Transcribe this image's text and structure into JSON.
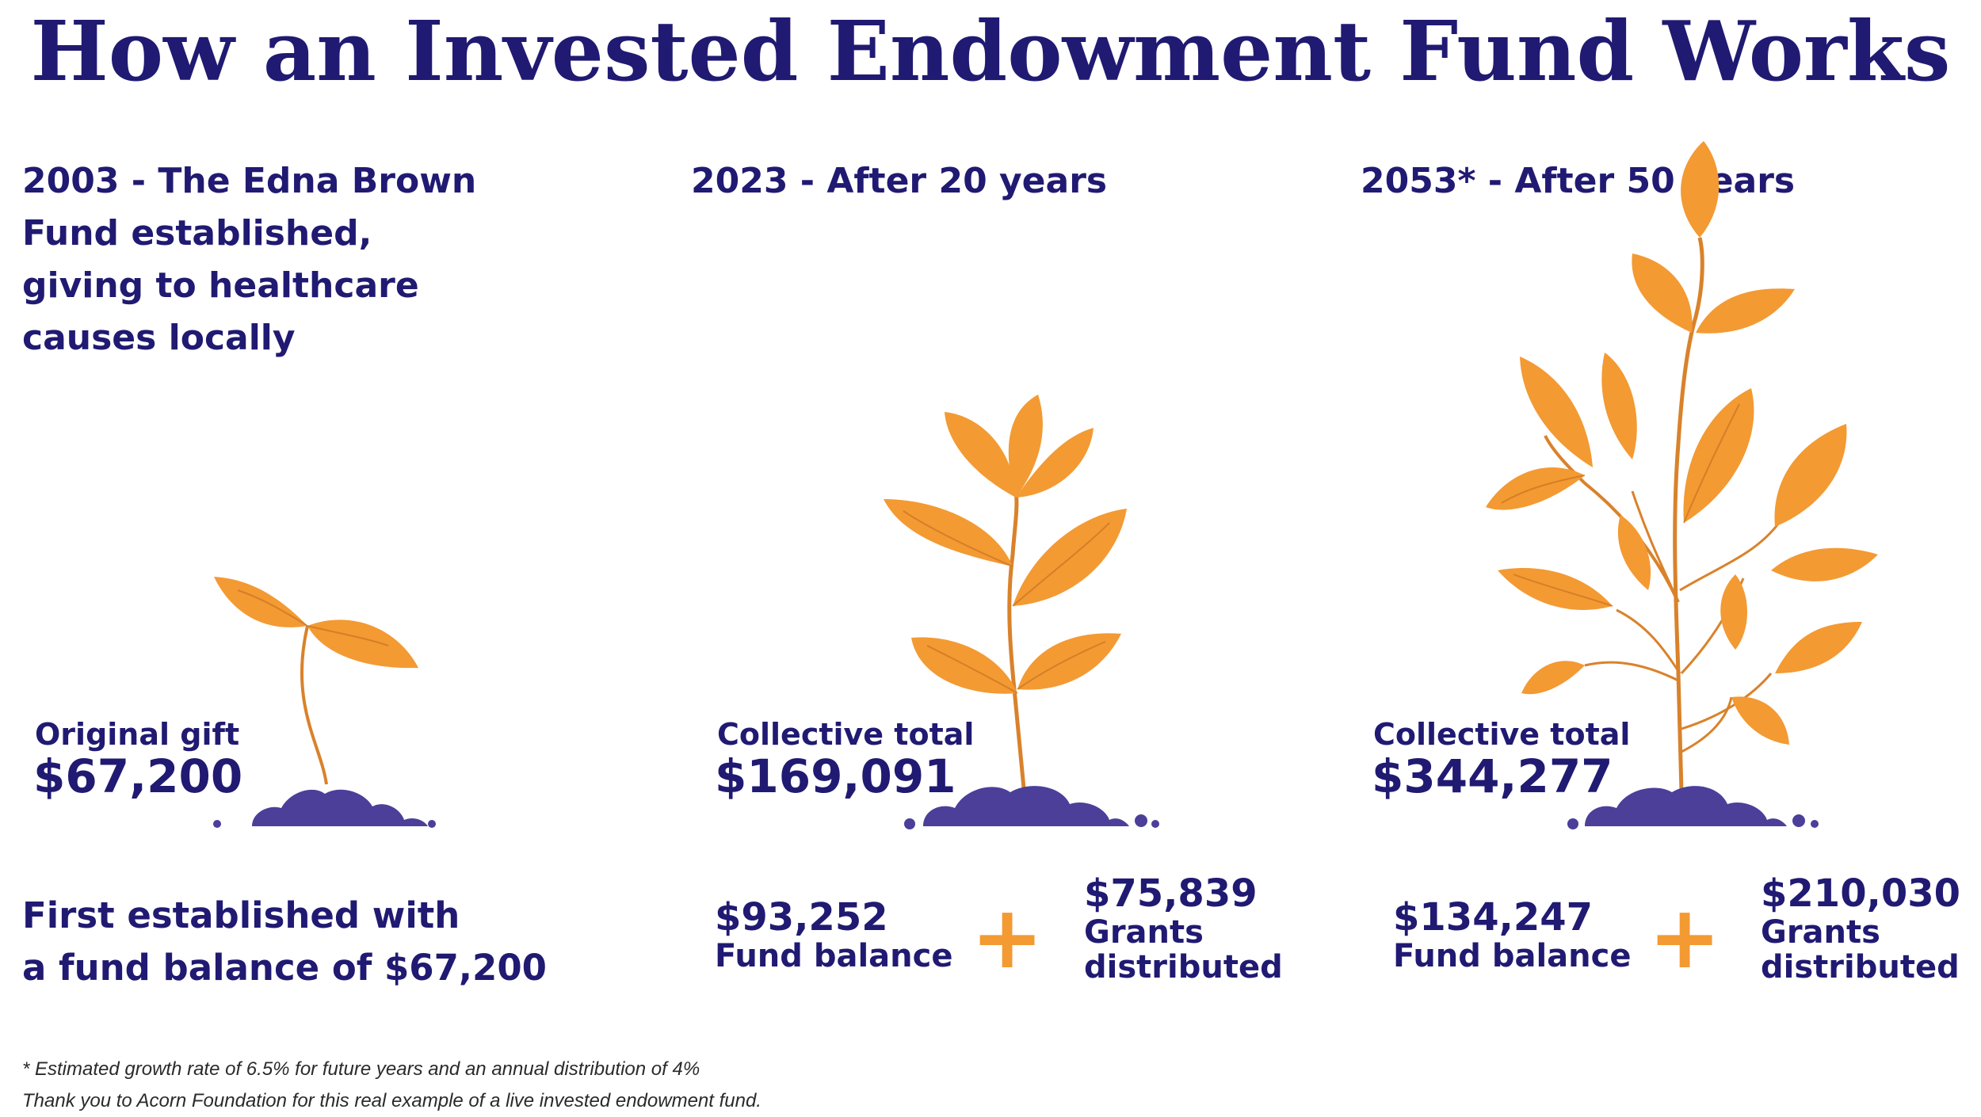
{
  "title": "How an Invested Endowment Fund Works",
  "columns": [
    {
      "heading_lines": [
        "2003 - The Edna Brown",
        "Fund established,",
        "giving to healthcare",
        "causes locally"
      ],
      "total_label": "Original gift",
      "total_value": "$67,200",
      "description_lines": [
        "First established with",
        "a fund balance of $67,200"
      ]
    },
    {
      "heading_lines": [
        "2023 - After 20 years"
      ],
      "total_label": "Collective total",
      "total_value": "$169,091",
      "fund_balance_value": "$93,252",
      "fund_balance_label": "Fund balance",
      "grants_value": "$75,839",
      "grants_label_lines": [
        "Grants",
        "distributed"
      ]
    },
    {
      "heading_lines": [
        "2053* - After 50 years"
      ],
      "total_label": "Collective total",
      "total_value": "$344,277",
      "fund_balance_value": "$134,247",
      "fund_balance_label": "Fund balance",
      "grants_value": "$210,030",
      "grants_label_lines": [
        "Grants",
        "distributed"
      ]
    }
  ],
  "plus_symbol": "+",
  "footnotes": [
    "* Estimated growth rate of 6.5% for future years and an annual distribution of 4%",
    "Thank you to Acorn Foundation for this real example of a live invested endowment fund."
  ],
  "colors": {
    "navy": "#201a72",
    "leaf_orange": "#f39a33",
    "stem": "#d9822b",
    "soil_purple": "#4b3f9a"
  },
  "icons": [
    "seedling-icon",
    "young-plant-icon",
    "mature-plant-icon",
    "plus-icon"
  ]
}
